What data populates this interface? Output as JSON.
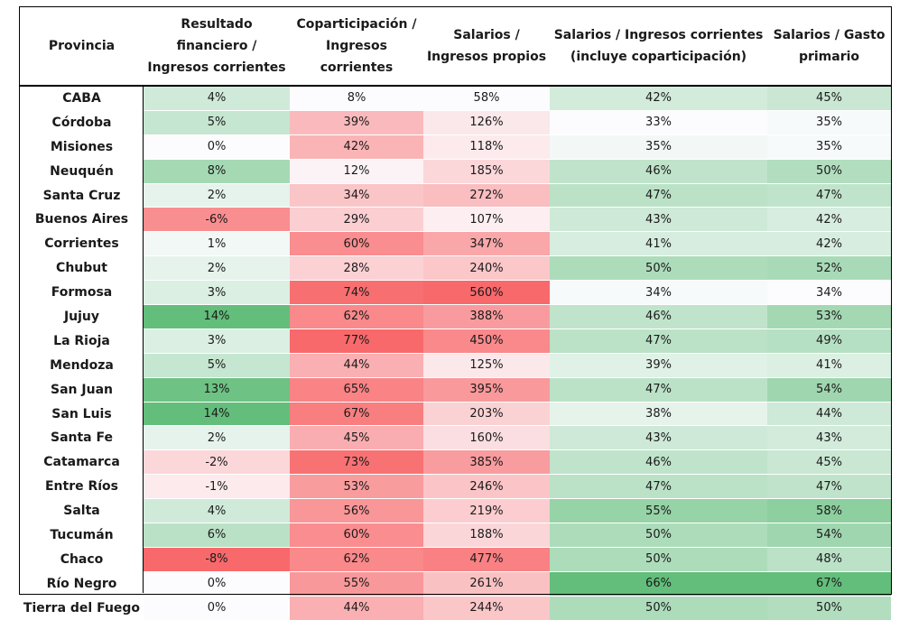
{
  "chart_data": {
    "type": "table",
    "columns": [
      "Provincia",
      "Resultado financiero / Ingresos corrientes",
      "Coparticipación / Ingresos corrientes",
      "Salarios / Ingresos propios",
      "Salarios / Ingresos corrientes (incluye coparticipación)",
      "Salarios / Gasto primario"
    ],
    "rows": [
      {
        "provincia": "CABA",
        "values": [
          4,
          8,
          58,
          42,
          45
        ],
        "labels": [
          "4%",
          "8%",
          "58%",
          "42%",
          "45%"
        ]
      },
      {
        "provincia": "Córdoba",
        "values": [
          5,
          39,
          126,
          33,
          35
        ],
        "labels": [
          "5%",
          "39%",
          "126%",
          "33%",
          "35%"
        ]
      },
      {
        "provincia": "Misiones",
        "values": [
          0,
          42,
          118,
          35,
          35
        ],
        "labels": [
          "0%",
          "42%",
          "118%",
          "35%",
          "35%"
        ]
      },
      {
        "provincia": "Neuquén",
        "values": [
          8,
          12,
          185,
          46,
          50
        ],
        "labels": [
          "8%",
          "12%",
          "185%",
          "46%",
          "50%"
        ]
      },
      {
        "provincia": "Santa Cruz",
        "values": [
          2,
          34,
          272,
          47,
          47
        ],
        "labels": [
          "2%",
          "34%",
          "272%",
          "47%",
          "47%"
        ]
      },
      {
        "provincia": "Buenos Aires",
        "values": [
          -6,
          29,
          107,
          43,
          42
        ],
        "labels": [
          "-6%",
          "29%",
          "107%",
          "43%",
          "42%"
        ]
      },
      {
        "provincia": "Corrientes",
        "values": [
          1,
          60,
          347,
          41,
          42
        ],
        "labels": [
          "1%",
          "60%",
          "347%",
          "41%",
          "42%"
        ]
      },
      {
        "provincia": "Chubut",
        "values": [
          2,
          28,
          240,
          50,
          52
        ],
        "labels": [
          "2%",
          "28%",
          "240%",
          "50%",
          "52%"
        ]
      },
      {
        "provincia": "Formosa",
        "values": [
          3,
          74,
          560,
          34,
          34
        ],
        "labels": [
          "3%",
          "74%",
          "560%",
          "34%",
          "34%"
        ]
      },
      {
        "provincia": "Jujuy",
        "values": [
          14,
          62,
          388,
          46,
          53
        ],
        "labels": [
          "14%",
          "62%",
          "388%",
          "46%",
          "53%"
        ]
      },
      {
        "provincia": "La Rioja",
        "values": [
          3,
          77,
          450,
          47,
          49
        ],
        "labels": [
          "3%",
          "77%",
          "450%",
          "47%",
          "49%"
        ]
      },
      {
        "provincia": "Mendoza",
        "values": [
          5,
          44,
          125,
          39,
          41
        ],
        "labels": [
          "5%",
          "44%",
          "125%",
          "39%",
          "41%"
        ]
      },
      {
        "provincia": "San Juan",
        "values": [
          13,
          65,
          395,
          47,
          54
        ],
        "labels": [
          "13%",
          "65%",
          "395%",
          "47%",
          "54%"
        ]
      },
      {
        "provincia": "San Luis",
        "values": [
          14,
          67,
          203,
          38,
          44
        ],
        "labels": [
          "14%",
          "67%",
          "203%",
          "38%",
          "44%"
        ]
      },
      {
        "provincia": "Santa Fe",
        "values": [
          2,
          45,
          160,
          43,
          43
        ],
        "labels": [
          "2%",
          "45%",
          "160%",
          "43%",
          "43%"
        ]
      },
      {
        "provincia": "Catamarca",
        "values": [
          -2,
          73,
          385,
          46,
          45
        ],
        "labels": [
          "-2%",
          "73%",
          "385%",
          "46%",
          "45%"
        ]
      },
      {
        "provincia": "Entre Ríos",
        "values": [
          -1,
          53,
          246,
          47,
          47
        ],
        "labels": [
          "-1%",
          "53%",
          "246%",
          "47%",
          "47%"
        ]
      },
      {
        "provincia": "Salta",
        "values": [
          4,
          56,
          219,
          55,
          58
        ],
        "labels": [
          "4%",
          "56%",
          "219%",
          "55%",
          "58%"
        ]
      },
      {
        "provincia": "Tucumán",
        "values": [
          6,
          60,
          188,
          50,
          54
        ],
        "labels": [
          "6%",
          "60%",
          "188%",
          "50%",
          "54%"
        ]
      },
      {
        "provincia": "Chaco",
        "values": [
          -8,
          62,
          477,
          50,
          48
        ],
        "labels": [
          "-8%",
          "62%",
          "477%",
          "50%",
          "48%"
        ]
      },
      {
        "provincia": "Río Negro",
        "values": [
          0,
          55,
          261,
          66,
          67
        ],
        "labels": [
          "0%",
          "55%",
          "261%",
          "66%",
          "67%"
        ]
      },
      {
        "provincia": "Tierra del Fuego",
        "values": [
          0,
          44,
          244,
          50,
          50
        ],
        "labels": [
          "0%",
          "44%",
          "244%",
          "50%",
          "50%"
        ]
      }
    ],
    "colors": {
      "low": "#f8696b",
      "mid": "#fcfcff",
      "high": "#63be7b"
    },
    "color_scale": [
      {
        "low": "red",
        "mid": "white",
        "high": "green"
      },
      {
        "low": "white",
        "high": "red"
      },
      {
        "low": "white",
        "high": "red"
      },
      {
        "low": "white",
        "high": "green"
      },
      {
        "low": "white",
        "high": "green"
      }
    ]
  }
}
